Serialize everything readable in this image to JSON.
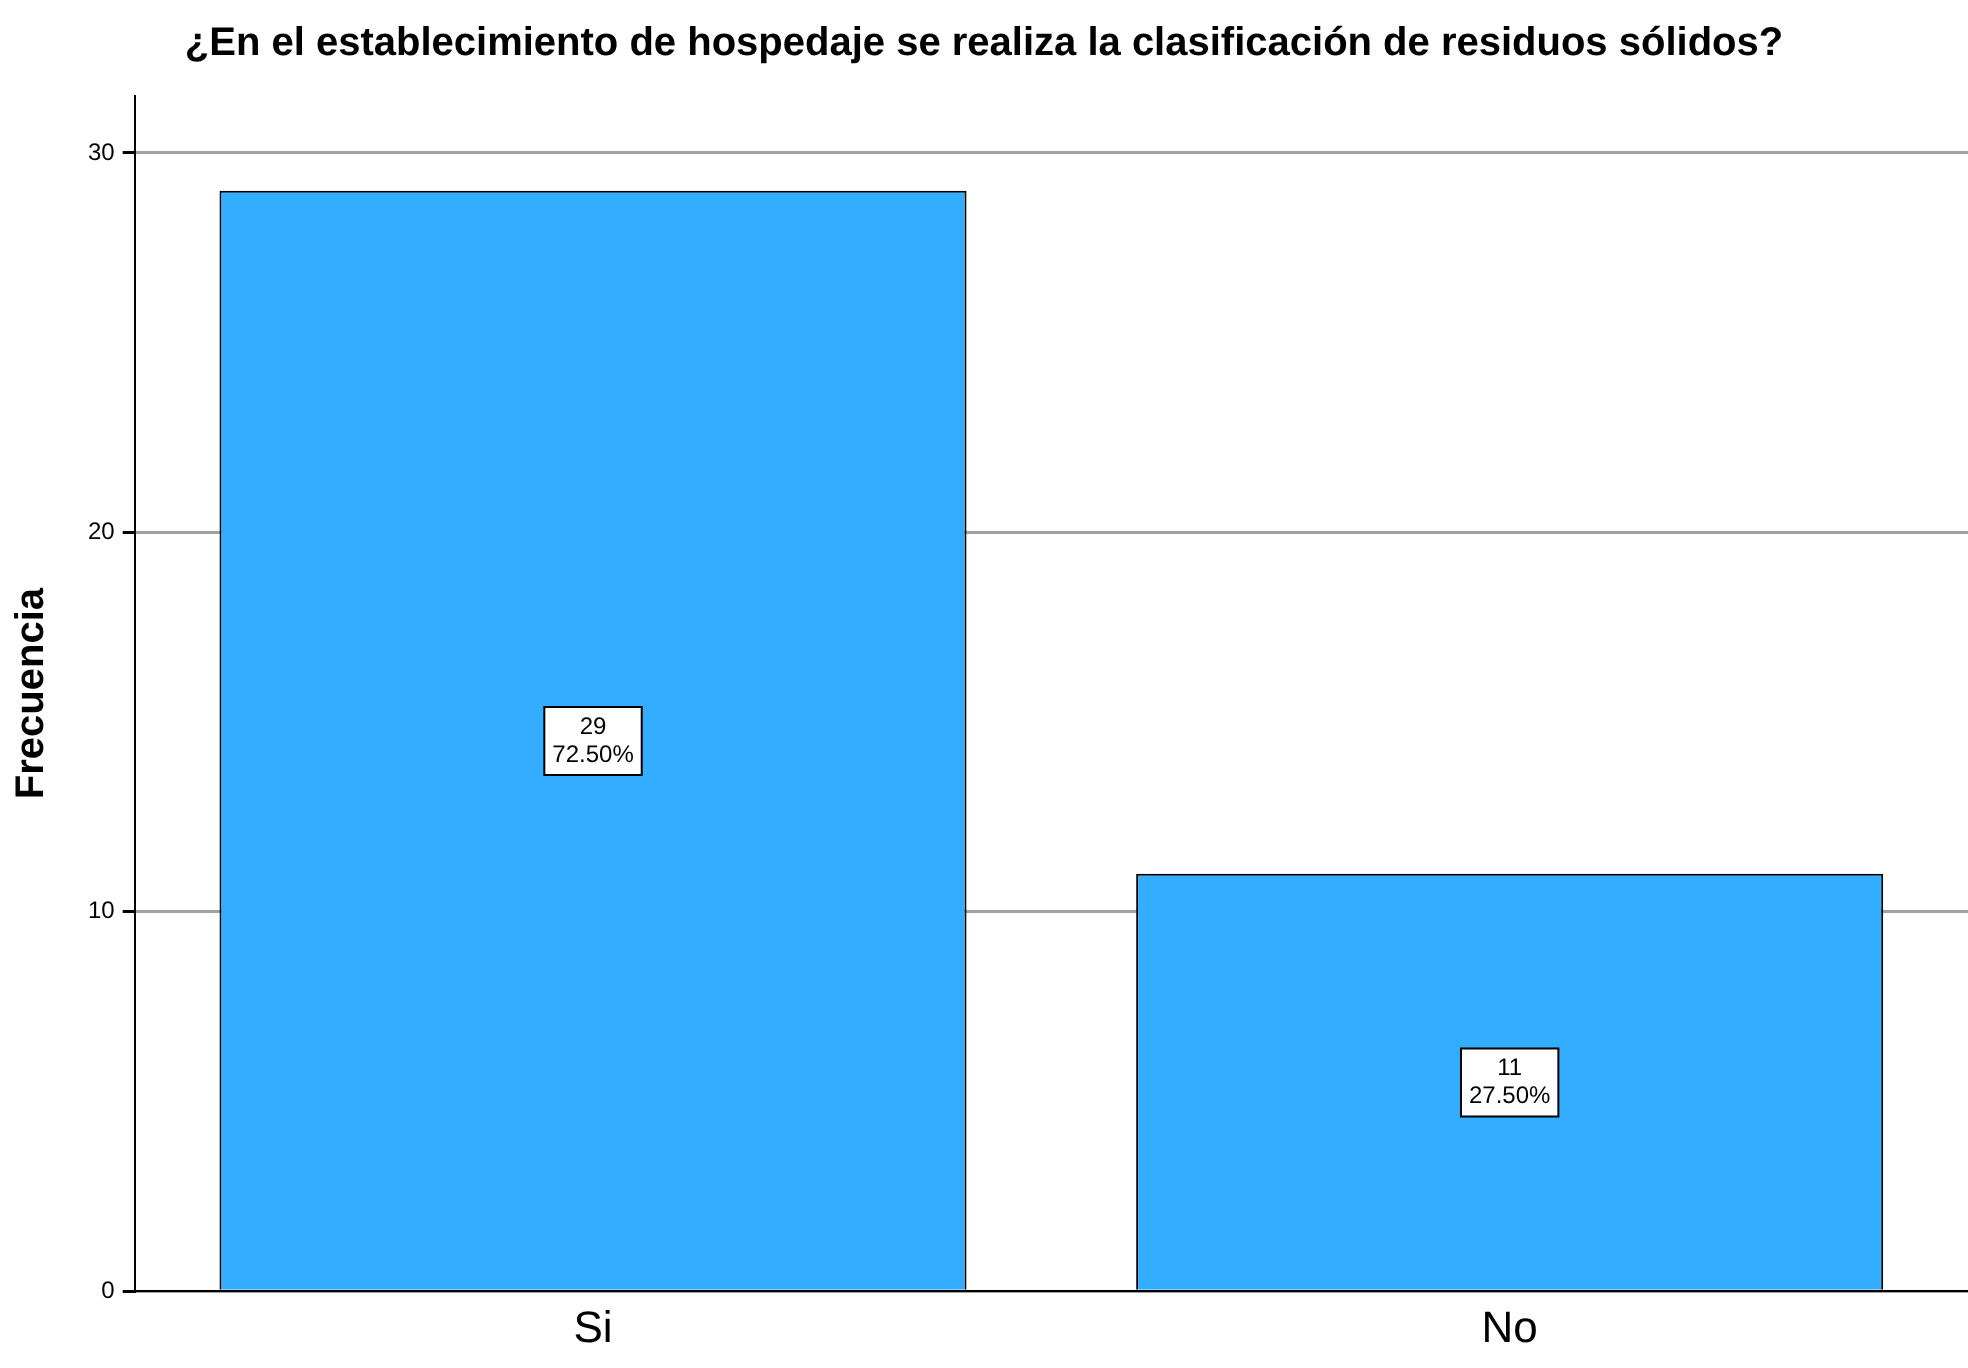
{
  "chart_data": {
    "type": "bar",
    "title": "¿En el establecimiento de hospedaje se realiza la clasificación de residuos sólidos?",
    "ylabel": "Frecuencia",
    "categories": [
      "Si",
      "No"
    ],
    "values": [
      29,
      11
    ],
    "color": "#33adff",
    "value_labels": [
      "29\n72.50%",
      "11\n27.50%"
    ],
    "ylim": [
      0,
      31.5
    ],
    "yticks": [
      0,
      10,
      20,
      30
    ],
    "grid": "y",
    "legend": false
  }
}
